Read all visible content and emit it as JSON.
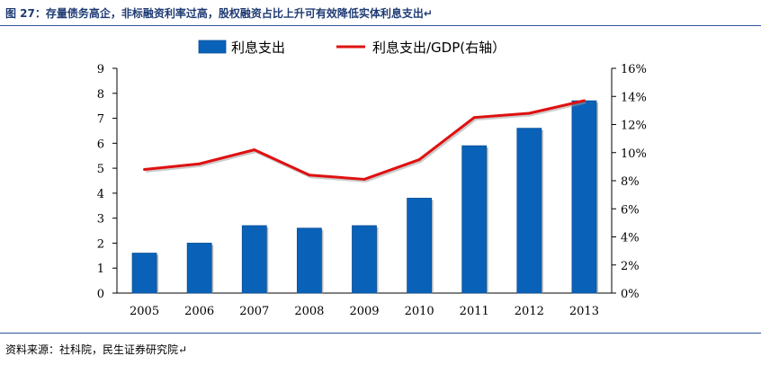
{
  "title": "图 27：存量债务高企，非标融资利率过高，股权融资占比上升可有效降低实体利息支出↵",
  "source": "资料来源：社科院，民生证券研究院↵",
  "chart_data": {
    "type": "bar+line",
    "categories": [
      "2005",
      "2006",
      "2007",
      "2008",
      "2009",
      "2010",
      "2011",
      "2012",
      "2013"
    ],
    "series": [
      {
        "name": "利息支出",
        "kind": "bar",
        "axis": "left",
        "color": "#0a62b8",
        "values": [
          1.6,
          2.0,
          2.7,
          2.6,
          2.7,
          3.8,
          5.9,
          6.6,
          7.7
        ]
      },
      {
        "name": "利息支出/GDP(右轴）",
        "kind": "line",
        "axis": "right",
        "color": "#e01010",
        "values": [
          8.8,
          9.2,
          10.2,
          8.4,
          8.1,
          9.5,
          12.5,
          12.8,
          13.7
        ]
      }
    ],
    "left_axis": {
      "min": 0,
      "max": 9,
      "ticks": [
        "0",
        "1",
        "2",
        "3",
        "4",
        "5",
        "6",
        "7",
        "8",
        "9"
      ]
    },
    "right_axis": {
      "min": 0,
      "max": 16,
      "unit": "%",
      "ticks": [
        "0%",
        "2%",
        "4%",
        "6%",
        "8%",
        "10%",
        "12%",
        "14%",
        "16%"
      ]
    },
    "legend": "top",
    "grid": false
  }
}
